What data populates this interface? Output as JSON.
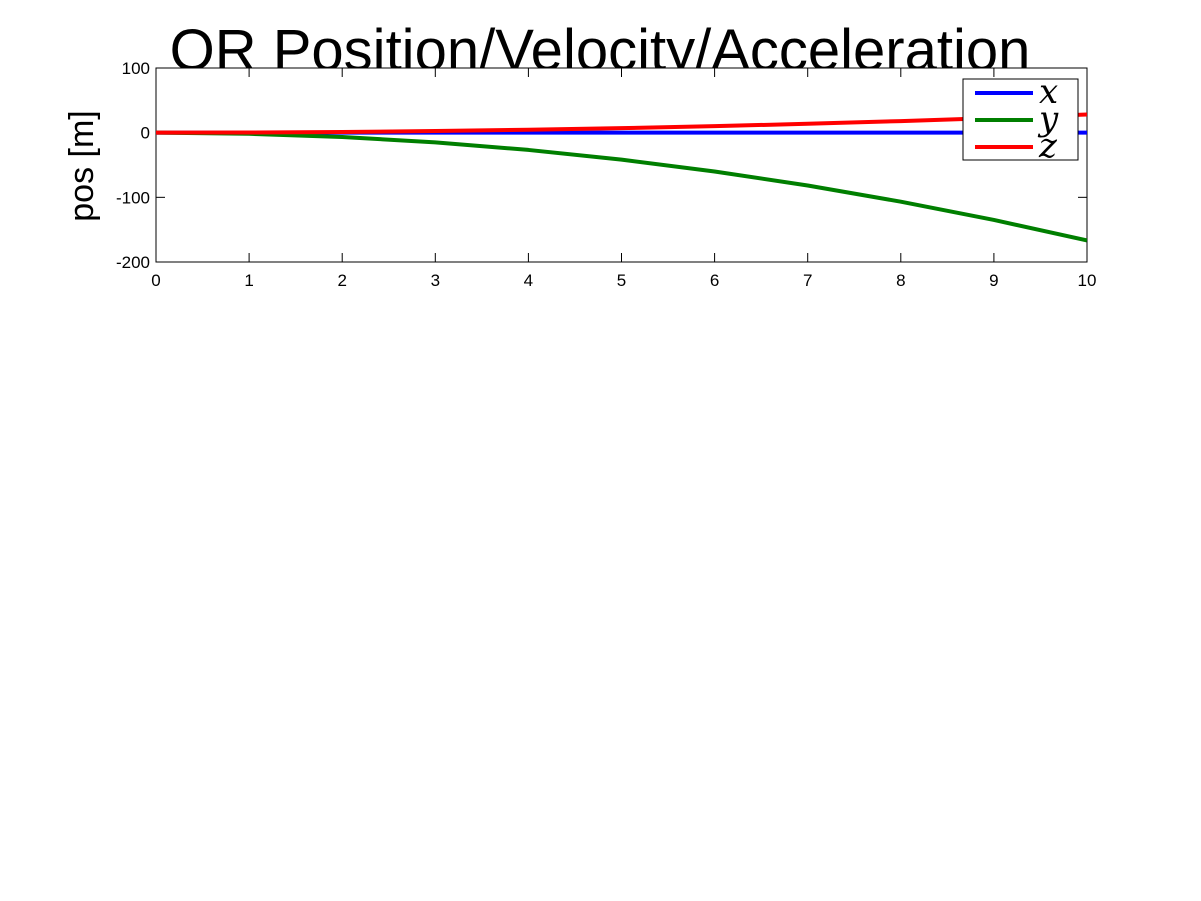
{
  "chart_data": {
    "type": "line",
    "title": "QR Position/Velocity/Acceleration",
    "xlabel": "",
    "ylabel": "pos [m]",
    "xlim": [
      0,
      10
    ],
    "ylim": [
      -200,
      100
    ],
    "x_ticks": [
      "0",
      "1",
      "2",
      "3",
      "4",
      "5",
      "6",
      "7",
      "8",
      "9",
      "10"
    ],
    "y_ticks": [
      "100",
      "0",
      "-100",
      "-200"
    ],
    "grid": false,
    "legend_position": "top-right",
    "series": [
      {
        "name": "x",
        "color": "#0000ff",
        "x": [
          0,
          1,
          2,
          3,
          4,
          5,
          6,
          7,
          8,
          9,
          10
        ],
        "values": [
          0,
          0,
          0,
          0,
          0,
          0,
          0,
          0,
          0,
          0,
          0
        ]
      },
      {
        "name": "y",
        "color": "#007f00",
        "x": [
          0,
          1,
          2,
          3,
          4,
          5,
          6,
          7,
          8,
          9,
          10
        ],
        "values": [
          0,
          -1.7,
          -6.7,
          -15,
          -26.7,
          -41.7,
          -60,
          -81.7,
          -106.7,
          -135,
          -166.7
        ]
      },
      {
        "name": "z",
        "color": "#ff0000",
        "x": [
          0,
          1,
          2,
          3,
          4,
          5,
          6,
          7,
          8,
          9,
          10
        ],
        "values": [
          0,
          0.3,
          1.1,
          2.5,
          4.5,
          7,
          10.1,
          13.7,
          17.9,
          22.7,
          28
        ]
      }
    ]
  }
}
